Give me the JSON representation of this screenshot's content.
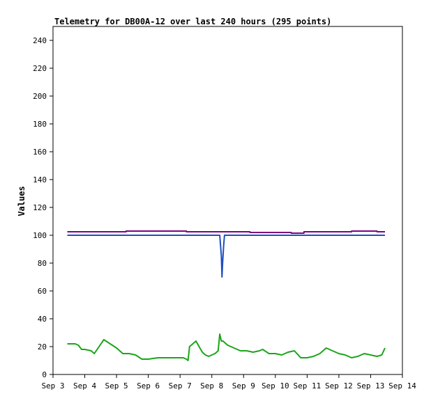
{
  "chart_data": {
    "type": "line",
    "title": "Telemetry for DB00A-12 over last 240 hours (295 points)",
    "xlabel": "",
    "ylabel": "Values",
    "x_is_date": true,
    "x_ticks": [
      "Sep 3",
      "Sep 4",
      "Sep 5",
      "Sep 6",
      "Sep 7",
      "Sep 8",
      "Sep 9",
      "Sep 10",
      "Sep 11",
      "Sep 12",
      "Sep 13",
      "Sep 14"
    ],
    "xlim": [
      3,
      14
    ],
    "ylim": [
      0,
      250
    ],
    "y_ticks": [
      0,
      20,
      40,
      60,
      80,
      100,
      120,
      140,
      160,
      180,
      200,
      220,
      240
    ],
    "grid": false,
    "legend": "none",
    "series": [
      {
        "color": "#800080",
        "x": [
          3.45,
          5.3,
          5.3,
          7.2,
          7.2,
          9.2,
          9.2,
          10.5,
          10.5,
          10.9,
          10.9,
          12.4,
          12.4,
          13.2,
          13.2,
          13.45
        ],
        "y": [
          102.5,
          102.5,
          103,
          103,
          102.5,
          102.5,
          102,
          102,
          101.5,
          101.5,
          102.5,
          102.5,
          103,
          103,
          102.5,
          102.5
        ]
      },
      {
        "color": "#1f4fbf",
        "x": [
          3.45,
          8.25,
          8.25,
          8.3,
          8.32,
          8.34,
          8.37,
          8.4,
          8.4,
          13.45
        ],
        "y": [
          100,
          100,
          100,
          85,
          70,
          80,
          92,
          100,
          100,
          100
        ]
      },
      {
        "color": "#1aa51a",
        "x": [
          3.45,
          3.7,
          3.8,
          3.9,
          4.0,
          4.2,
          4.3,
          4.45,
          4.6,
          4.8,
          5.0,
          5.2,
          5.4,
          5.6,
          5.8,
          6.0,
          6.3,
          6.6,
          6.9,
          7.1,
          7.2,
          7.25,
          7.3,
          7.4,
          7.5,
          7.6,
          7.7,
          7.8,
          7.9,
          8.0,
          8.1,
          8.2,
          8.25,
          8.3,
          8.35,
          8.5,
          8.7,
          8.9,
          9.1,
          9.3,
          9.5,
          9.6,
          9.8,
          10.0,
          10.2,
          10.4,
          10.6,
          10.8,
          11.0,
          11.2,
          11.4,
          11.6,
          11.8,
          12.0,
          12.2,
          12.4,
          12.6,
          12.8,
          13.0,
          13.2,
          13.35,
          13.45
        ],
        "y": [
          22,
          22,
          21,
          18,
          18,
          17,
          15,
          20,
          25,
          22,
          19,
          15,
          15,
          14,
          11,
          11,
          12,
          12,
          12,
          12,
          11,
          10,
          20,
          22,
          24,
          20,
          16,
          14,
          13,
          14,
          15,
          17,
          29,
          24,
          24,
          21,
          19,
          17,
          17,
          16,
          17,
          18,
          15,
          15,
          14,
          16,
          17,
          12,
          12,
          13,
          15,
          19,
          17,
          15,
          14,
          12,
          13,
          15,
          14,
          13,
          14,
          19
        ]
      }
    ]
  }
}
